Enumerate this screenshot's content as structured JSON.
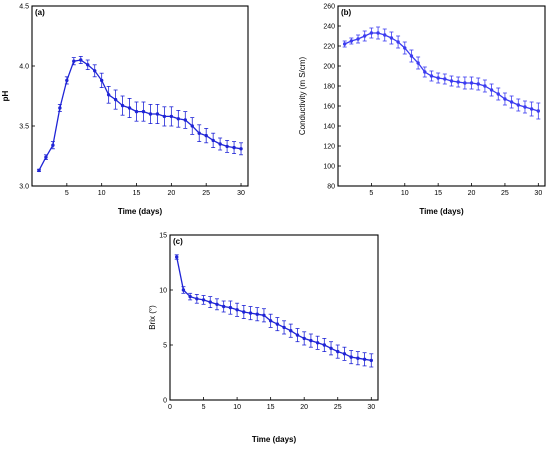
{
  "chart_data": [
    {
      "type": "line",
      "panel_label": "(a)",
      "xlabel": "Time (days)",
      "ylabel": "pH",
      "xlim": [
        0,
        31
      ],
      "ylim": [
        3.0,
        4.5
      ],
      "xticks": [
        5,
        10,
        15,
        20,
        25,
        30
      ],
      "yticks": [
        3.0,
        3.5,
        4.0,
        4.5
      ],
      "ytick_labels": [
        "3.0",
        "3.5",
        "4.0",
        "4.5"
      ],
      "series": [
        {
          "color": "#1f24d6",
          "x": [
            1,
            2,
            3,
            4,
            5,
            6,
            7,
            8,
            9,
            10,
            11,
            12,
            13,
            14,
            15,
            16,
            17,
            18,
            19,
            20,
            21,
            22,
            23,
            24,
            25,
            26,
            27,
            28,
            29,
            30
          ],
          "values": [
            3.13,
            3.24,
            3.34,
            3.65,
            3.88,
            4.04,
            4.05,
            4.01,
            3.96,
            3.88,
            3.76,
            3.72,
            3.67,
            3.65,
            3.62,
            3.62,
            3.6,
            3.6,
            3.58,
            3.58,
            3.56,
            3.55,
            3.5,
            3.44,
            3.42,
            3.38,
            3.35,
            3.33,
            3.32,
            3.31
          ],
          "errors": [
            0.01,
            0.02,
            0.03,
            0.03,
            0.03,
            0.03,
            0.03,
            0.04,
            0.05,
            0.06,
            0.07,
            0.08,
            0.08,
            0.08,
            0.08,
            0.08,
            0.08,
            0.08,
            0.08,
            0.08,
            0.07,
            0.07,
            0.07,
            0.07,
            0.06,
            0.06,
            0.05,
            0.05,
            0.05,
            0.05
          ]
        }
      ]
    },
    {
      "type": "line",
      "panel_label": "(b)",
      "xlabel": "Time (days)",
      "ylabel": "Conductivity  (m S/cm)",
      "xlim": [
        0,
        31
      ],
      "ylim": [
        80,
        260
      ],
      "xticks": [
        5,
        10,
        15,
        20,
        25,
        30
      ],
      "yticks": [
        80,
        100,
        120,
        140,
        160,
        180,
        200,
        220,
        240,
        260
      ],
      "ytick_labels": [
        "80",
        "100",
        "120",
        "140",
        "160",
        "180",
        "200",
        "220",
        "240",
        "260"
      ],
      "series": [
        {
          "color": "#3b3bf0",
          "x": [
            1,
            2,
            3,
            4,
            5,
            6,
            7,
            8,
            9,
            10,
            11,
            12,
            13,
            14,
            15,
            16,
            17,
            18,
            19,
            20,
            21,
            22,
            23,
            24,
            25,
            26,
            27,
            28,
            29,
            30
          ],
          "values": [
            222,
            225,
            227,
            230,
            233,
            233,
            231,
            228,
            224,
            218,
            210,
            203,
            194,
            190,
            188,
            187,
            185,
            184,
            183,
            183,
            182,
            180,
            176,
            172,
            167,
            164,
            161,
            159,
            157,
            155
          ],
          "errors": [
            3,
            3,
            4,
            5,
            5,
            6,
            6,
            6,
            6,
            6,
            6,
            6,
            5,
            5,
            5,
            5,
            5,
            5,
            6,
            6,
            6,
            6,
            6,
            6,
            6,
            6,
            6,
            6,
            7,
            8
          ]
        }
      ]
    },
    {
      "type": "line",
      "panel_label": "(c)",
      "xlabel": "Time (days)",
      "ylabel": "Brix (°)",
      "xlim": [
        0,
        31
      ],
      "ylim": [
        0,
        15
      ],
      "xticks": [
        0,
        5,
        10,
        15,
        20,
        25,
        30
      ],
      "yticks": [
        0,
        5,
        10,
        15
      ],
      "ytick_labels": [
        "0",
        "5",
        "10",
        "15"
      ],
      "series": [
        {
          "color": "#1f24d6",
          "x": [
            1,
            2,
            3,
            4,
            5,
            6,
            7,
            8,
            9,
            10,
            11,
            12,
            13,
            14,
            15,
            16,
            17,
            18,
            19,
            20,
            21,
            22,
            23,
            24,
            25,
            26,
            27,
            28,
            29,
            30
          ],
          "values": [
            13.0,
            10.0,
            9.4,
            9.2,
            9.1,
            8.9,
            8.7,
            8.5,
            8.4,
            8.2,
            8.0,
            7.9,
            7.8,
            7.7,
            7.2,
            6.9,
            6.6,
            6.3,
            5.9,
            5.6,
            5.4,
            5.2,
            5.0,
            4.7,
            4.4,
            4.2,
            3.9,
            3.8,
            3.7,
            3.6
          ],
          "errors": [
            0.2,
            0.3,
            0.3,
            0.4,
            0.4,
            0.5,
            0.5,
            0.5,
            0.6,
            0.6,
            0.6,
            0.6,
            0.6,
            0.6,
            0.6,
            0.6,
            0.6,
            0.6,
            0.6,
            0.6,
            0.6,
            0.6,
            0.6,
            0.6,
            0.6,
            0.6,
            0.6,
            0.6,
            0.6,
            0.6
          ]
        }
      ]
    }
  ]
}
